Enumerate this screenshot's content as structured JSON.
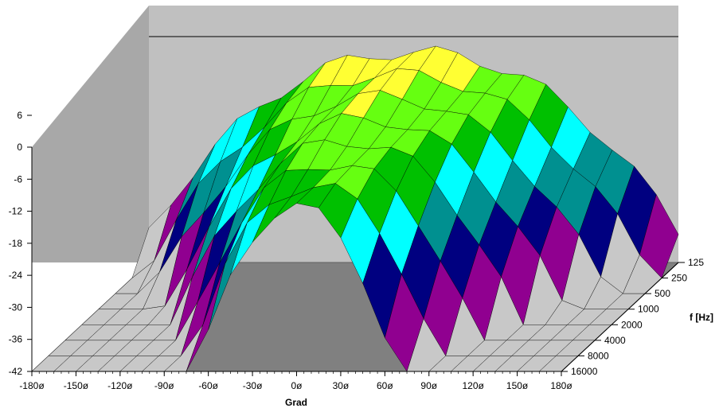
{
  "chart_data": {
    "type": "surface-3d",
    "x_axis": {
      "label": "Grad",
      "ticks": [
        "-180ø",
        "-150ø",
        "-120ø",
        "-90ø",
        "-60ø",
        "-30ø",
        "0ø",
        "30ø",
        "60ø",
        "90ø",
        "120ø",
        "150ø",
        "180ø"
      ],
      "range": [
        -180,
        180
      ]
    },
    "y_axis": {
      "label": "",
      "ticks": [
        "6",
        "0",
        "-6",
        "-12",
        "-18",
        "-24",
        "-30",
        "-36",
        "-42"
      ],
      "range": [
        -42,
        6
      ]
    },
    "depth_axis": {
      "label": "f [Hz]",
      "ticks": [
        "125",
        "250",
        "500",
        "1000",
        "2000",
        "4000",
        "8000",
        "16000"
      ]
    },
    "color_bands": [
      {
        "range": [
          0,
          6
        ],
        "color": "#ffff33"
      },
      {
        "range": [
          -6,
          0
        ],
        "color": "#66ff11"
      },
      {
        "range": [
          -12,
          -6
        ],
        "color": "#00c000"
      },
      {
        "range": [
          -18,
          -12
        ],
        "color": "#00ffff"
      },
      {
        "range": [
          -24,
          -18
        ],
        "color": "#009090"
      },
      {
        "range": [
          -30,
          -24
        ],
        "color": "#000080"
      },
      {
        "range": [
          -36,
          -30
        ],
        "color": "#900090"
      },
      {
        "range": [
          -42,
          -36
        ],
        "color": "#c8c8c8"
      }
    ],
    "colors": {
      "wall": "#c0c0c0",
      "floor": "#808080",
      "mesh": "#000000"
    },
    "grid": false
  }
}
